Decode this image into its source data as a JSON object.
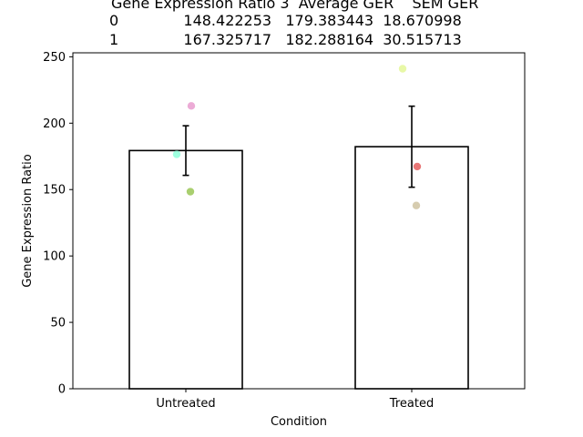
{
  "chart_data": {
    "type": "bar",
    "title_lines": [
      "Gene Expression Ratio 3  Average GER    SEM GER",
      "0              148.422253   179.383443  18.670998",
      "1              167.325717   182.288164  30.515713"
    ],
    "categories": [
      "Untreated",
      "Treated"
    ],
    "values": [
      179.383443,
      182.288164
    ],
    "errors": [
      18.670998,
      30.515713
    ],
    "points": [
      [
        {
          "value": 176.5,
          "color": "#7fffd4"
        },
        {
          "value": 213.0,
          "color": "#e58fc8"
        },
        {
          "value": 148.422253,
          "color": "#8cbf3f"
        }
      ],
      [
        {
          "value": 241.0,
          "color": "#e0f58a"
        },
        {
          "value": 167.325717,
          "color": "#e04a4a"
        },
        {
          "value": 138.0,
          "color": "#c8bb94"
        }
      ]
    ],
    "xlabel": "Condition",
    "ylabel": "Gene Expression Ratio",
    "ylim": [
      0,
      253
    ],
    "yticks": [
      0,
      50,
      100,
      150,
      200,
      250
    ],
    "bar_fill": "#ffffff",
    "bar_edge": "#000000",
    "grid": false
  }
}
